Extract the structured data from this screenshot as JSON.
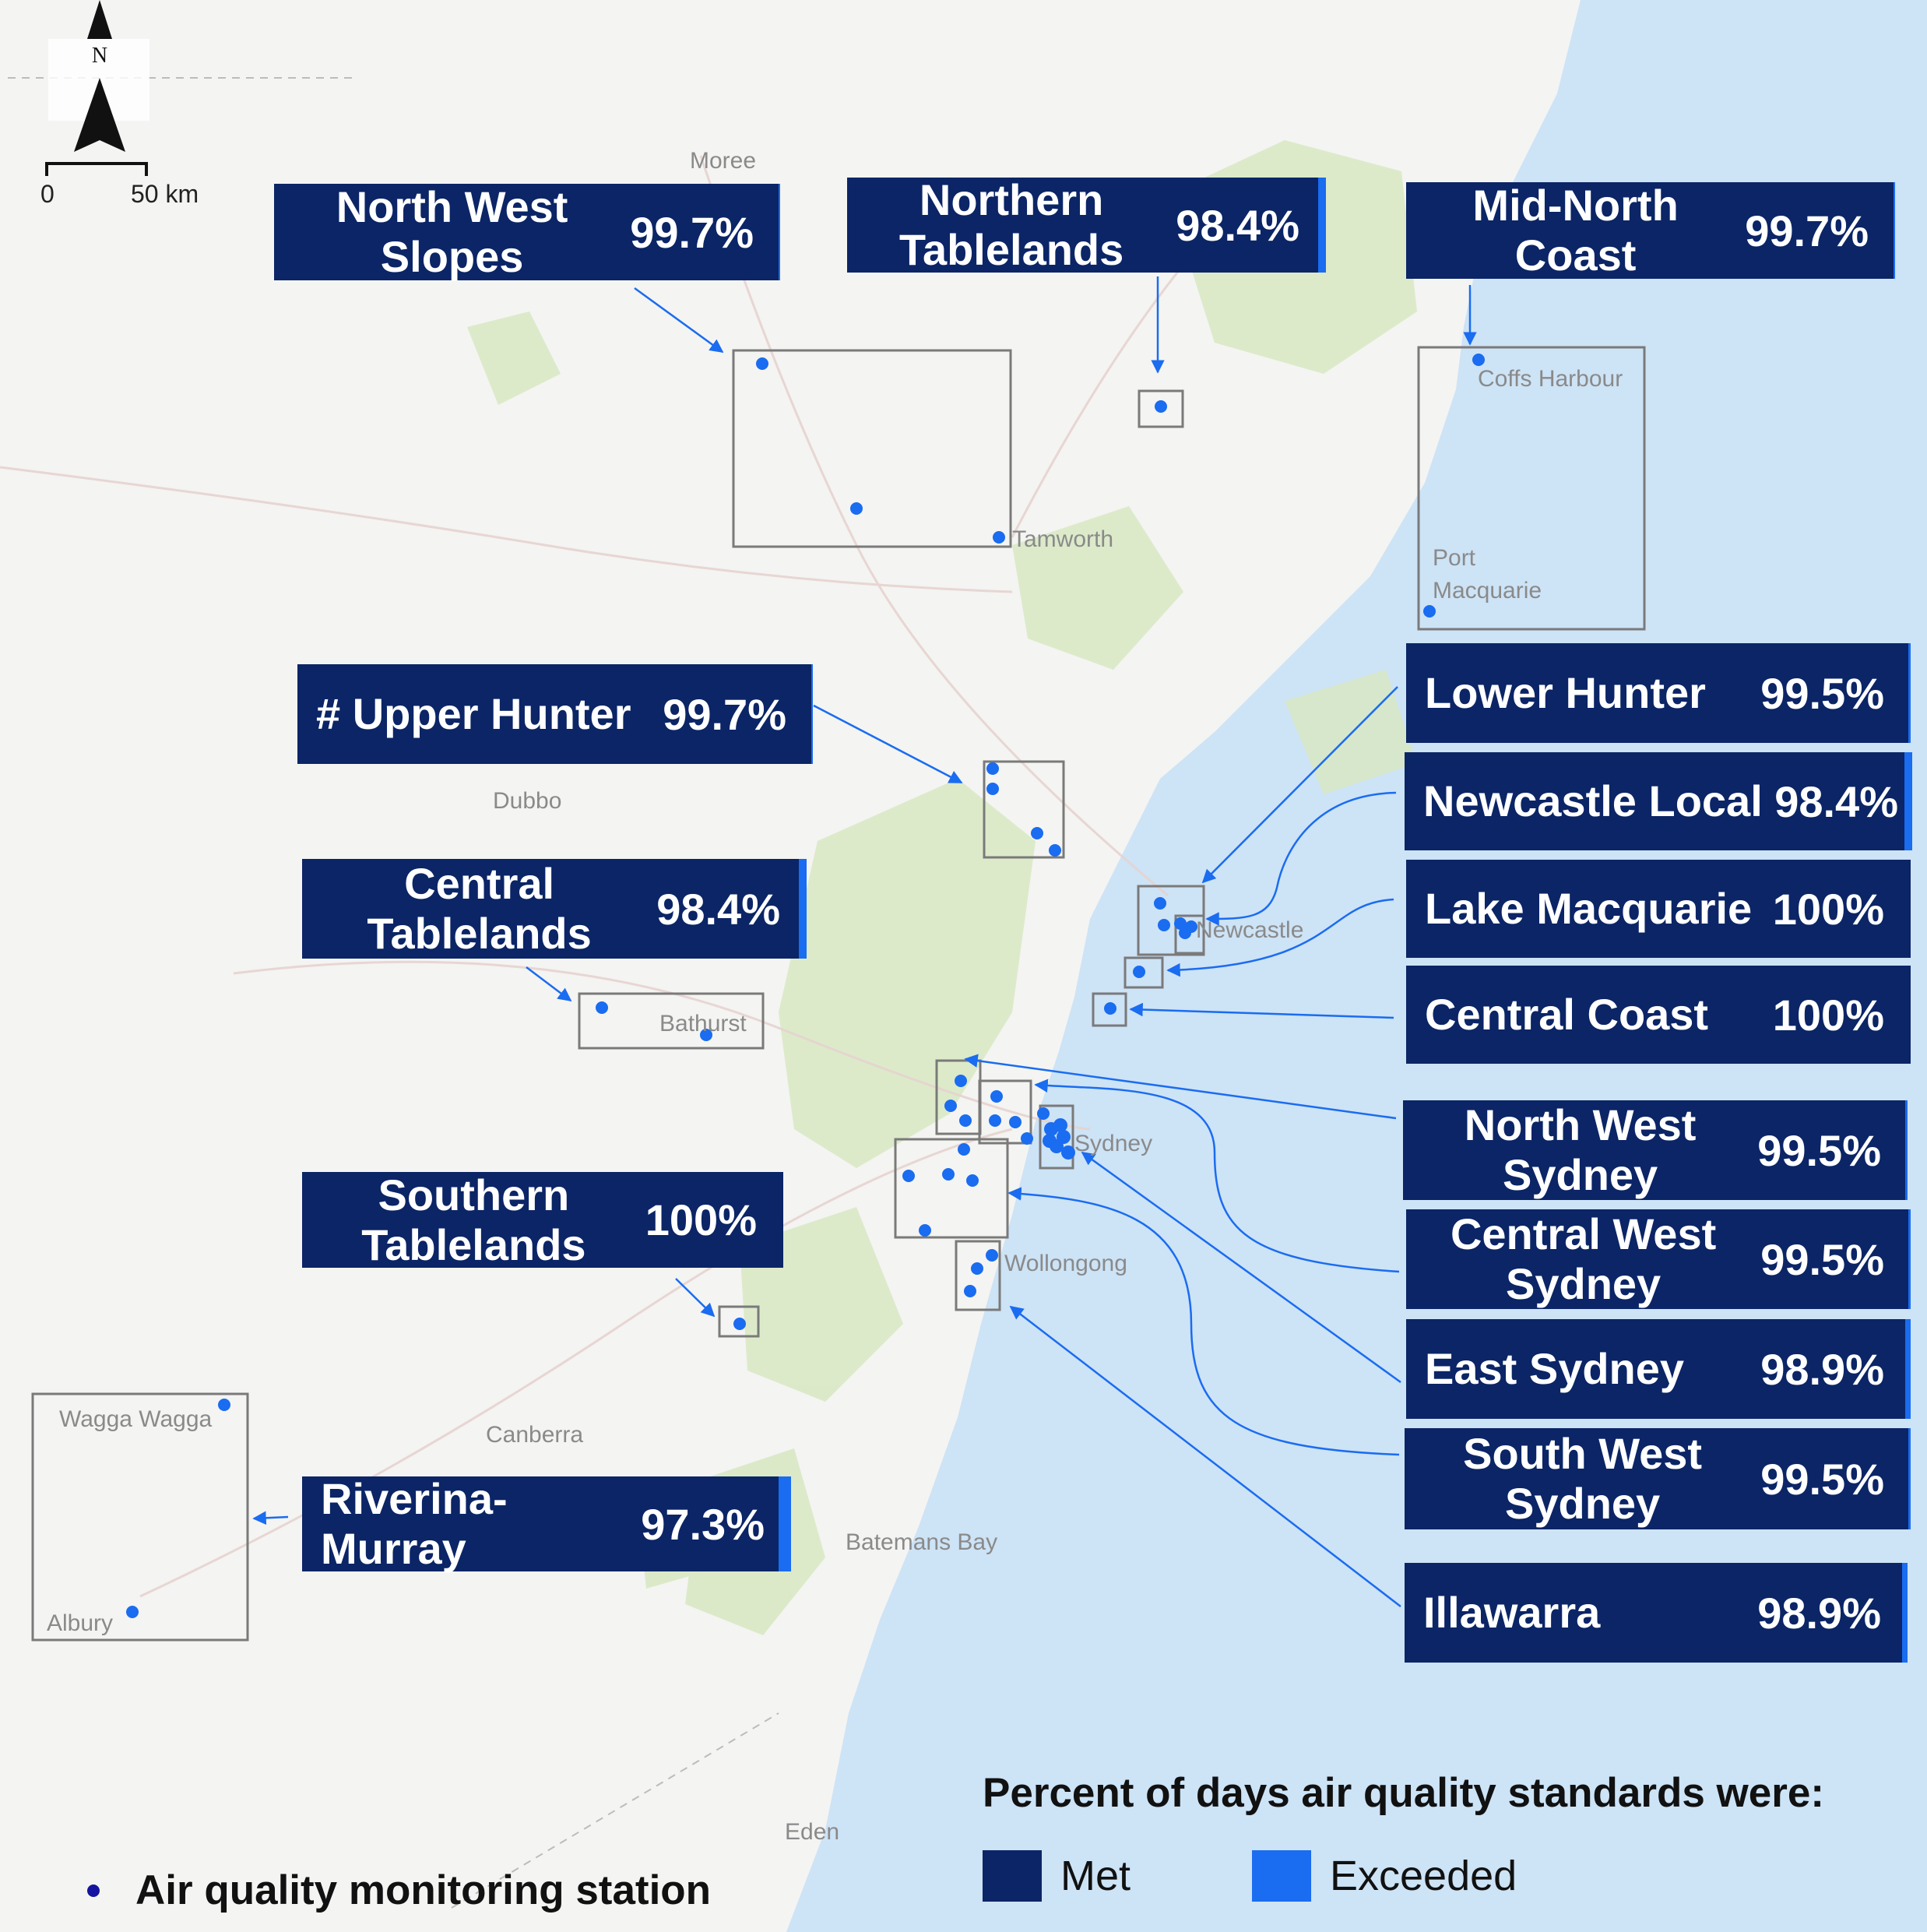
{
  "compass": {
    "label": "N"
  },
  "scale_bar": {
    "start": "0",
    "end": "50 km"
  },
  "places": {
    "moree": "Moree",
    "tamworth": "Tamworth",
    "coffs_harbour": "Coffs Harbour",
    "port_macquarie_1": "Port",
    "port_macquarie_2": "Macquarie",
    "dubbo": "Dubbo",
    "newcastle": "Newcastle",
    "bathurst": "Bathurst",
    "sydney": "Sydney",
    "wollongong": "Wollongong",
    "wagga_wagga": "Wagga Wagga",
    "canberra": "Canberra",
    "batemans_bay": "Batemans Bay",
    "albury": "Albury",
    "eden": "Eden"
  },
  "regions": [
    {
      "id": "north-west-slopes",
      "name_line1": "North West",
      "name_line2": "Slopes",
      "percent": "99.7%",
      "met": 99.7
    },
    {
      "id": "northern-tablelands",
      "name_line1": "Northern",
      "name_line2": "Tablelands",
      "percent": "98.4%",
      "met": 98.4
    },
    {
      "id": "mid-north-coast",
      "name_line1": "Mid-North",
      "name_line2": "Coast",
      "percent": "99.7%",
      "met": 99.7
    },
    {
      "id": "upper-hunter",
      "name_line1": "# Upper Hunter",
      "name_line2": "",
      "percent": "99.7%",
      "met": 99.7
    },
    {
      "id": "central-tablelands",
      "name_line1": "Central",
      "name_line2": "Tablelands",
      "percent": "98.4%",
      "met": 98.4
    },
    {
      "id": "southern-tablelands",
      "name_line1": "Southern",
      "name_line2": "Tablelands",
      "percent": "100%",
      "met": 100
    },
    {
      "id": "riverina-murray",
      "name_line1": "Riverina-Murray",
      "name_line2": "",
      "percent": "97.3%",
      "met": 97.3
    },
    {
      "id": "lower-hunter",
      "name_line1": "Lower Hunter",
      "name_line2": "",
      "percent": "99.5%",
      "met": 99.5
    },
    {
      "id": "newcastle-local",
      "name_line1": "Newcastle Local",
      "name_line2": "",
      "percent": "98.4%",
      "met": 98.4
    },
    {
      "id": "lake-macquarie",
      "name_line1": "Lake Macquarie",
      "name_line2": "",
      "percent": "100%",
      "met": 100
    },
    {
      "id": "central-coast",
      "name_line1": "Central Coast",
      "name_line2": "",
      "percent": "100%",
      "met": 100
    },
    {
      "id": "north-west-sydney",
      "name_line1": "North West",
      "name_line2": "Sydney",
      "percent": "99.5%",
      "met": 99.5
    },
    {
      "id": "central-west-sydney",
      "name_line1": "Central West",
      "name_line2": "Sydney",
      "percent": "99.5%",
      "met": 99.5
    },
    {
      "id": "east-sydney",
      "name_line1": "East Sydney",
      "name_line2": "",
      "percent": "98.9%",
      "met": 98.9
    },
    {
      "id": "south-west-sydney",
      "name_line1": "South West",
      "name_line2": "Sydney",
      "percent": "99.5%",
      "met": 99.5
    },
    {
      "id": "illawarra",
      "name_line1": "Illawarra",
      "name_line2": "",
      "percent": "98.9%",
      "met": 98.9
    }
  ],
  "legend": {
    "title": "Percent of days air quality standards were:",
    "met_label": "Met",
    "exceeded_label": "Exceeded",
    "met_color": "#0b2566",
    "exceeded_color": "#1a6cf0",
    "station_label": "Air quality monitoring station",
    "station_color": "#1a6cf0"
  }
}
